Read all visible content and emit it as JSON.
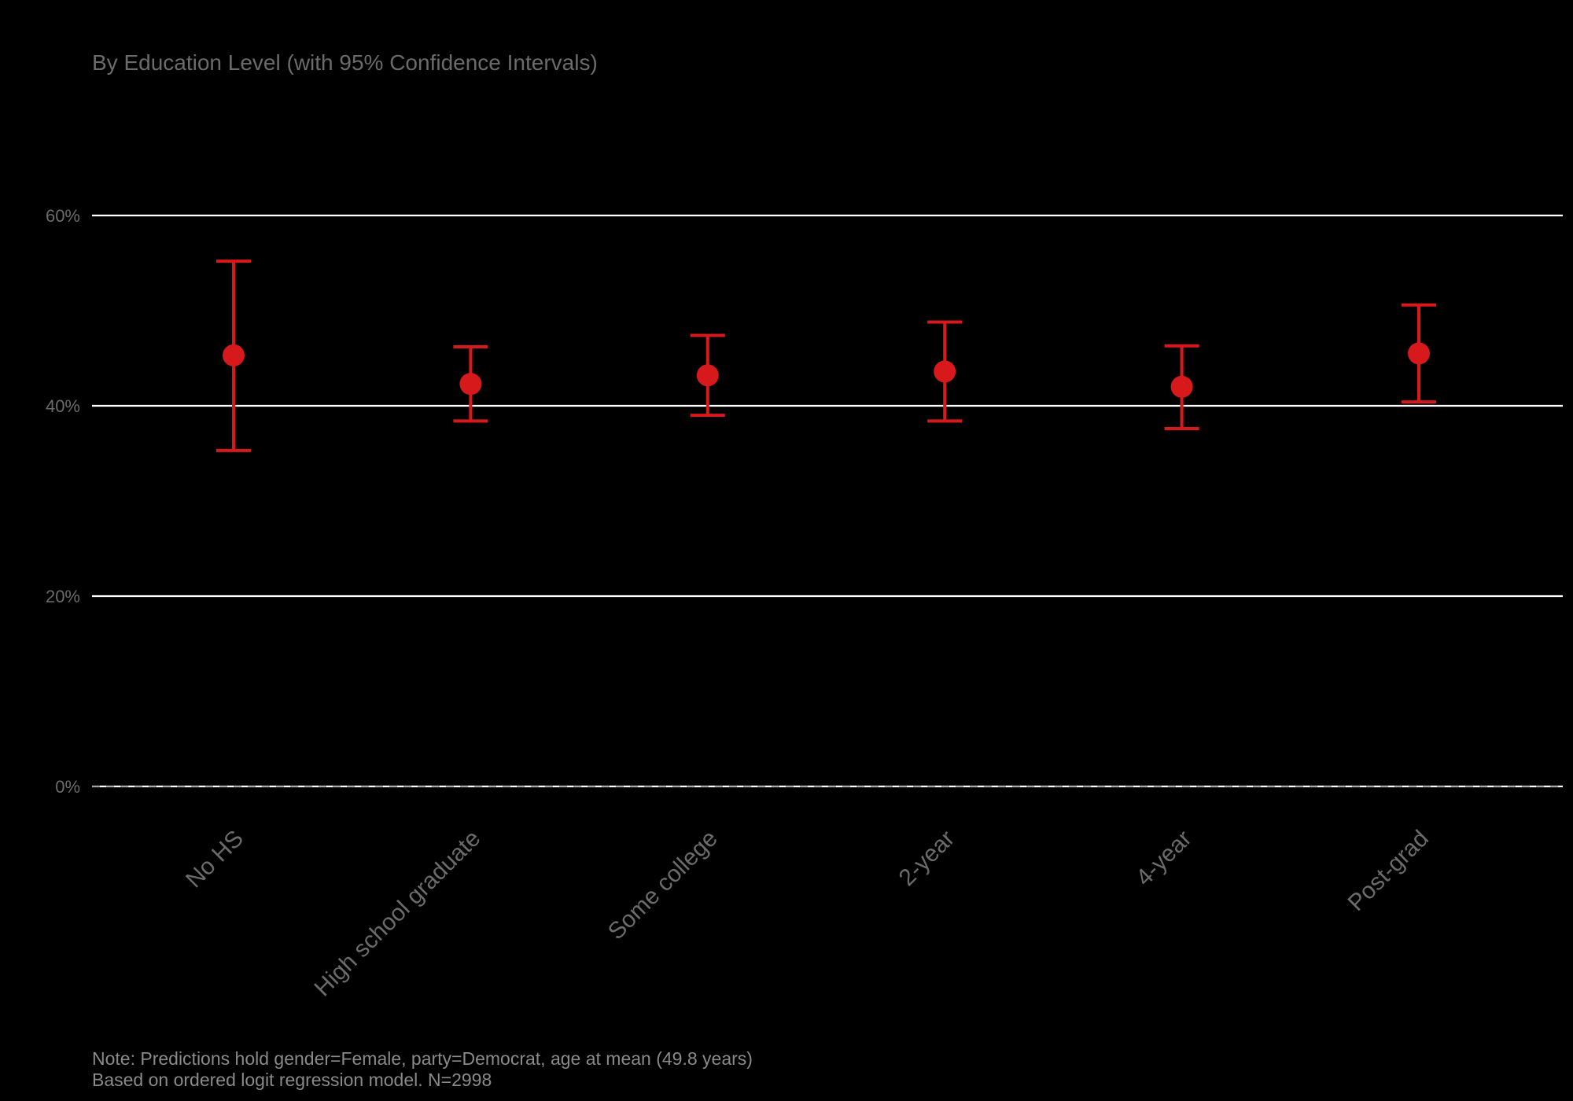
{
  "chart_data": {
    "type": "scatter",
    "subtitle": "By Education Level (with 95% Confidence Intervals)",
    "title": "",
    "xlabel": "",
    "ylabel": "",
    "categories": [
      "No HS",
      "High school graduate",
      "Some college",
      "2-year",
      "4-year",
      "Post-grad"
    ],
    "series": [
      {
        "estimate": [
          45.3,
          42.3,
          43.2,
          43.6,
          42.0,
          45.5
        ],
        "lower": [
          35.3,
          38.4,
          39.0,
          38.4,
          37.6,
          40.4
        ],
        "upper": [
          55.2,
          46.2,
          47.4,
          48.8,
          46.3,
          50.6
        ]
      }
    ],
    "ylim": [
      0,
      60
    ],
    "yticks": [
      0,
      20,
      40,
      60
    ],
    "ytick_labels": [
      "0%",
      "20%",
      "40%",
      "60%"
    ],
    "grid": true,
    "reference_line": {
      "y": 0,
      "style": "dashed"
    },
    "colors": {
      "background": "#000000",
      "point": "#d7191c",
      "grid": "#ffffff",
      "text": "#6b6b6b",
      "caption": "#8a8a8a"
    },
    "caption": [
      "Note: Predictions hold gender=Female, party=Democrat, age at mean (49.8 years)",
      "Based on ordered logit regression model. N=2998"
    ]
  }
}
